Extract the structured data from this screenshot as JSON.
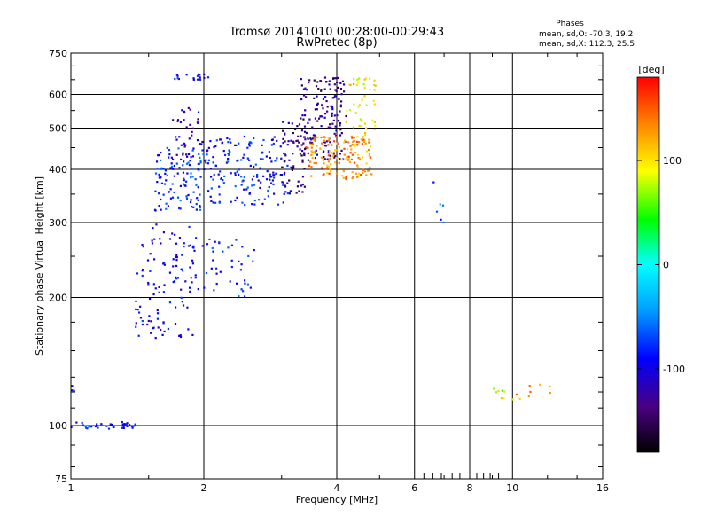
{
  "chart_data": {
    "type": "scatter",
    "title": "Tromsø 20141010 00:28:00-00:29:43",
    "subtitle": "RwPretec (8p)",
    "xlabel": "Frequency [MHz]",
    "ylabel": "Stationary phase Virtual Height [km]",
    "x_scale": "log",
    "y_scale": "log",
    "xlim": [
      1,
      16
    ],
    "ylim": [
      75,
      750
    ],
    "x_ticks": [
      1,
      2,
      4,
      6,
      8,
      10,
      16
    ],
    "y_ticks": [
      75,
      100,
      200,
      300,
      400,
      500,
      600,
      750
    ],
    "grid": true,
    "phase_info": {
      "title": "Phases",
      "line_o": "mean, sd,O: -70.3, 19.2",
      "line_x": "mean, sd,X: 112.3, 25.5"
    },
    "colorbar": {
      "label": "[deg]",
      "range": [
        -180,
        180
      ],
      "ticks": [
        100,
        0,
        -100
      ]
    },
    "clusters": [
      {
        "x": [
          1.0,
          1.4
        ],
        "y": [
          98,
          102
        ],
        "phase": -85,
        "n": 35
      },
      {
        "x": [
          1.0,
          1.02
        ],
        "y": [
          118,
          125
        ],
        "phase": -100,
        "n": 3
      },
      {
        "x": [
          1.4,
          1.9
        ],
        "y": [
          160,
          300
        ],
        "phase": -100,
        "n": 110
      },
      {
        "x": [
          1.9,
          2.6
        ],
        "y": [
          200,
          280
        ],
        "phase": -80,
        "n": 45
      },
      {
        "x": [
          1.55,
          2.0
        ],
        "y": [
          320,
          450
        ],
        "phase": -80,
        "n": 110
      },
      {
        "x": [
          2.0,
          3.1
        ],
        "y": [
          330,
          480
        ],
        "phase": -85,
        "n": 170
      },
      {
        "x": [
          1.7,
          2.0
        ],
        "y": [
          420,
          560
        ],
        "phase": -120,
        "n": 40
      },
      {
        "x": [
          1.7,
          2.05
        ],
        "y": [
          650,
          670
        ],
        "phase": -95,
        "n": 18
      },
      {
        "x": [
          3.0,
          3.4
        ],
        "y": [
          350,
          520
        ],
        "phase": -135,
        "n": 60
      },
      {
        "x": [
          3.3,
          4.2
        ],
        "y": [
          420,
          660
        ],
        "phase": -130,
        "n": 160
      },
      {
        "x": [
          3.4,
          4.8
        ],
        "y": [
          380,
          480
        ],
        "phase": 130,
        "n": 150
      },
      {
        "x": [
          4.2,
          4.9
        ],
        "y": [
          480,
          660
        ],
        "phase": 100,
        "n": 45
      },
      {
        "x": [
          6.4,
          7.2
        ],
        "y": [
          300,
          380
        ],
        "phase": -60,
        "n": 6
      },
      {
        "x": [
          9.0,
          10.2
        ],
        "y": [
          115,
          125
        ],
        "phase": 80,
        "n": 8
      },
      {
        "x": [
          10.0,
          12.5
        ],
        "y": [
          110,
          125
        ],
        "phase": 130,
        "n": 8
      }
    ]
  }
}
